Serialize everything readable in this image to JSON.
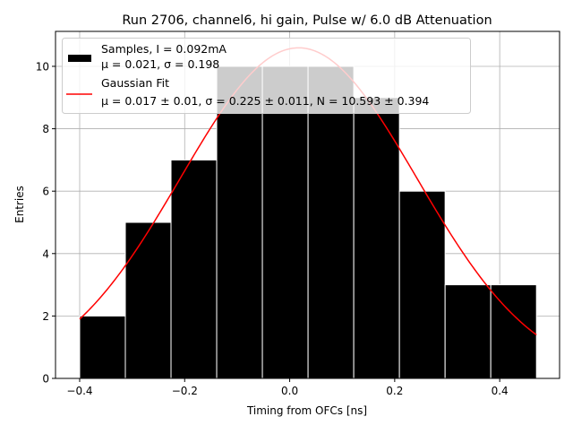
{
  "chart_data": {
    "type": "bar",
    "title": "Run 2706, channel6, hi gain, Pulse w/ 6.0 dB Attenuation",
    "xlabel": "Timing from OFCs [ns]",
    "ylabel": "Entries",
    "xlim": [
      -0.446,
      0.514
    ],
    "ylim": [
      0,
      11.12
    ],
    "grid": true,
    "legend_position": "top-left",
    "xticks": [
      -0.4,
      -0.2,
      0.0,
      0.2,
      0.4
    ],
    "xtick_labels": [
      "−0.4",
      "−0.2",
      "0.0",
      "0.2",
      "0.4"
    ],
    "yticks": [
      0,
      2,
      4,
      6,
      8,
      10
    ],
    "yticks_labels": [
      "0",
      "2",
      "4",
      "6",
      "8",
      "10"
    ],
    "bin_edges": [
      -0.4,
      -0.313,
      -0.226,
      -0.139,
      -0.052,
      0.035,
      0.122,
      0.209,
      0.296,
      0.383,
      0.47
    ],
    "values": [
      2,
      5,
      7,
      10,
      10,
      10,
      9,
      6,
      3,
      3
    ],
    "bar_color": "#000000",
    "fit": {
      "mu": 0.017,
      "sigma": 0.225,
      "N": 10.593,
      "x_range": [
        -0.4,
        0.47
      ],
      "color": "#ff0000"
    },
    "legend": [
      {
        "label_line1": "Samples, I = 0.092mA",
        "label_line2": "μ = 0.021, σ = 0.198"
      },
      {
        "label_line1": "Gaussian Fit",
        "label_line2": "μ = 0.017 ± 0.01, σ = 0.225 ± 0.011, N = 10.593 ± 0.394"
      }
    ]
  }
}
